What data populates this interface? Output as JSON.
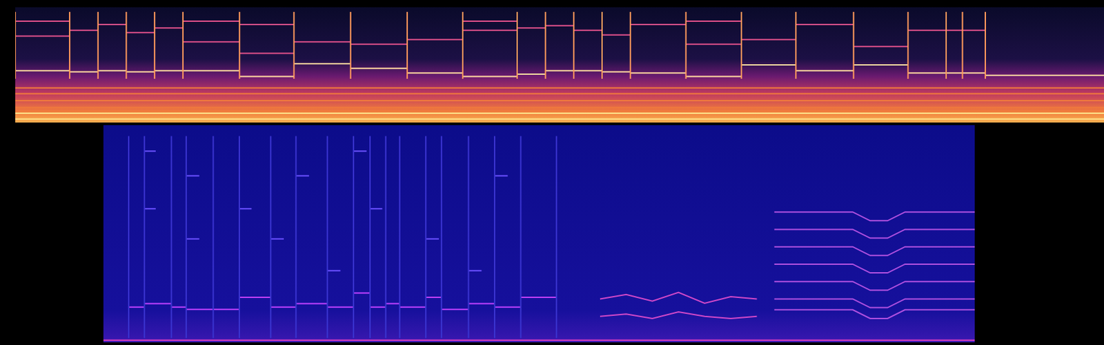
{
  "chart_data": [
    {
      "type": "spectrogram",
      "xlim": [
        0,
        100
      ],
      "ylim": [
        0,
        100
      ],
      "tick_labels": false,
      "grid": false,
      "series": [
        {
          "type": "line",
          "color": "#f07a3c",
          "x": [
            0,
            100,
            null,
            0,
            100,
            null,
            0,
            100,
            null,
            0,
            100
          ],
          "values": [
            13,
            13,
            null,
            19,
            19,
            null,
            25,
            25,
            null,
            30,
            30
          ]
        },
        {
          "type": "line",
          "color": "#ffe28a",
          "x": [
            0,
            100,
            null,
            0,
            100
          ],
          "values": [
            3,
            3,
            null,
            8,
            8
          ]
        },
        {
          "type": "line",
          "color": "#ff9a5c",
          "x": [
            0,
            0,
            null,
            5.0,
            5.0,
            null,
            7.6,
            7.6,
            null,
            10.2,
            10.2,
            null,
            12.8,
            12.8,
            null,
            15.4,
            15.4,
            null,
            20.6,
            20.6,
            null,
            25.6,
            25.6,
            null,
            30.8,
            30.8,
            null,
            36.0,
            36.0,
            null,
            41.1,
            41.1,
            null,
            46.1,
            46.1,
            null,
            48.7,
            48.7,
            null,
            51.3,
            51.3,
            null,
            53.9,
            53.9,
            null,
            56.5,
            56.5,
            null,
            61.6,
            61.6,
            null,
            66.7,
            66.7,
            null,
            71.7,
            71.7,
            null,
            77.0,
            77.0,
            null,
            82.0,
            82.0,
            null,
            85.5,
            85.5,
            null,
            87.0,
            87.0,
            null,
            89.1,
            89.1
          ],
          "values": [
            38,
            96,
            null,
            38,
            96,
            null,
            38,
            96,
            null,
            38,
            96,
            null,
            38,
            96,
            null,
            38,
            96,
            null,
            38,
            96,
            null,
            38,
            96,
            null,
            38,
            96,
            null,
            38,
            96,
            null,
            38,
            96,
            null,
            38,
            96,
            null,
            38,
            96,
            null,
            38,
            96,
            null,
            38,
            96,
            null,
            38,
            96,
            null,
            38,
            96,
            null,
            38,
            96,
            null,
            38,
            96,
            null,
            38,
            96,
            null,
            38,
            96,
            null,
            38,
            96,
            null,
            38,
            96,
            null,
            38,
            96
          ]
        },
        {
          "type": "line",
          "color": "#e0508a",
          "x": [
            0,
            5,
            null,
            0,
            5,
            null,
            5,
            7.6,
            null,
            7.6,
            10.2,
            null,
            10.2,
            12.8,
            null,
            12.8,
            15.4,
            null,
            15.4,
            20.6,
            null,
            15.4,
            20.6,
            null,
            20.6,
            25.6,
            null,
            20.6,
            25.6,
            null,
            25.6,
            30.8,
            null,
            30.8,
            36.0,
            null,
            36.0,
            41.1,
            null,
            41.1,
            46.1,
            null,
            41.1,
            46.1,
            null,
            46.1,
            48.7,
            null,
            48.7,
            51.3,
            null,
            51.3,
            53.9,
            null,
            53.9,
            56.5,
            null,
            56.5,
            61.6,
            null,
            61.6,
            66.7,
            null,
            61.6,
            66.7,
            null,
            66.7,
            71.7,
            null,
            71.7,
            77.0,
            null,
            77.0,
            82.0,
            null,
            82.0,
            89.1
          ],
          "values": [
            88,
            88,
            null,
            75,
            75,
            null,
            80,
            80,
            null,
            85,
            85,
            null,
            78,
            78,
            null,
            82,
            82,
            null,
            88,
            88,
            null,
            70,
            70,
            null,
            85,
            85,
            null,
            60,
            60,
            null,
            70,
            70,
            null,
            68,
            68,
            null,
            72,
            72,
            null,
            88,
            88,
            null,
            80,
            80,
            null,
            82,
            82,
            null,
            84,
            84,
            null,
            80,
            80,
            null,
            76,
            76,
            null,
            85,
            85,
            null,
            88,
            88,
            null,
            68,
            68,
            null,
            72,
            72,
            null,
            85,
            85,
            null,
            66,
            66,
            null,
            80,
            80
          ]
        },
        {
          "type": "line",
          "color": "#ffd9a0",
          "x": [
            0,
            5.0,
            null,
            5.0,
            7.6,
            null,
            7.6,
            10.2,
            null,
            10.2,
            12.8,
            null,
            12.8,
            15.4,
            null,
            15.4,
            20.6,
            null,
            20.6,
            25.6,
            null,
            25.6,
            30.8,
            null,
            30.8,
            36.0,
            null,
            36.0,
            41.1,
            null,
            41.1,
            46.1,
            null,
            46.1,
            48.7,
            null,
            48.7,
            51.3,
            null,
            51.3,
            53.9,
            null,
            53.9,
            56.5,
            null,
            56.5,
            61.6,
            null,
            61.6,
            66.7,
            null,
            66.7,
            71.7,
            null,
            71.7,
            77.0,
            null,
            77.0,
            82.0,
            null,
            82.0,
            89.1,
            null,
            89.1,
            100
          ],
          "values": [
            45,
            45,
            null,
            44,
            44,
            null,
            45,
            45,
            null,
            44,
            44,
            null,
            45,
            45,
            null,
            45,
            45,
            null,
            40,
            40,
            null,
            51,
            51,
            null,
            47,
            47,
            null,
            43,
            43,
            null,
            40,
            40,
            null,
            42,
            42,
            null,
            45,
            45,
            null,
            45,
            45,
            null,
            44,
            44,
            null,
            43,
            43,
            null,
            40,
            40,
            null,
            50,
            50,
            null,
            45,
            45,
            null,
            50,
            50,
            null,
            43,
            43,
            null,
            41,
            41
          ]
        }
      ]
    },
    {
      "type": "spectrogram",
      "xlim": [
        0,
        100
      ],
      "ylim": [
        0,
        100
      ],
      "tick_labels": false,
      "grid": false,
      "series": [
        {
          "type": "line",
          "color": "#3a34d0",
          "x": [
            2.9,
            2.9,
            null,
            4.7,
            4.7,
            null,
            7.8,
            7.8,
            null,
            9.5,
            9.5,
            null,
            12.6,
            12.6,
            null,
            15.6,
            15.6,
            null,
            19.2,
            19.2,
            null,
            22.1,
            22.1,
            null,
            25.7,
            25.7,
            null,
            28.7,
            28.7,
            null,
            30.6,
            30.6,
            null,
            32.4,
            32.4,
            null,
            34.0,
            34.0,
            null,
            37.0,
            37.0,
            null,
            38.8,
            38.8,
            null,
            41.9,
            41.9,
            null,
            44.9,
            44.9,
            null,
            47.9,
            47.9,
            null,
            52.0,
            52.0
          ],
          "values": [
            2,
            95,
            null,
            2,
            95,
            null,
            2,
            95,
            null,
            2,
            95,
            null,
            2,
            95,
            null,
            2,
            95,
            null,
            2,
            95,
            null,
            2,
            95,
            null,
            2,
            95,
            null,
            2,
            95,
            null,
            2,
            95,
            null,
            2,
            95,
            null,
            2,
            95,
            null,
            2,
            95,
            null,
            2,
            95,
            null,
            2,
            95,
            null,
            2,
            95,
            null,
            2,
            95,
            null,
            2,
            95
          ]
        },
        {
          "type": "line",
          "color": "#e040c0",
          "x": [
            0,
            100
          ],
          "values": [
            1,
            1
          ]
        },
        {
          "type": "line",
          "color": "#6a50ff",
          "x": [
            4.7,
            6,
            null,
            4.7,
            6,
            null,
            9.5,
            11,
            null,
            9.5,
            11,
            null,
            15.6,
            17,
            null,
            19.2,
            20.7,
            null,
            22.1,
            23.6,
            null,
            25.7,
            27.2,
            null,
            28.7,
            30.2,
            null,
            30.6,
            32,
            null,
            37.0,
            38.5,
            null,
            41.9,
            43.4,
            null,
            44.9,
            46.4
          ],
          "values": [
            88,
            88,
            null,
            61.5,
            61.5,
            null,
            76.7,
            76.7,
            null,
            47.6,
            47.6,
            null,
            61.5,
            61.5,
            null,
            47.6,
            47.6,
            null,
            76.7,
            76.7,
            null,
            33,
            33,
            null,
            88,
            88,
            null,
            61.5,
            61.5,
            null,
            47.6,
            47.6,
            null,
            33,
            33,
            null,
            76.7,
            76.7
          ]
        },
        {
          "type": "line",
          "color": "#c040ff",
          "x": [
            2.9,
            4.7,
            null,
            4.7,
            7.8,
            null,
            7.8,
            9.5,
            null,
            9.5,
            12.6,
            null,
            12.6,
            15.6,
            null,
            15.6,
            19.2,
            null,
            19.2,
            22.1,
            null,
            22.1,
            25.7,
            null,
            25.7,
            28.7,
            null,
            28.7,
            30.6,
            null,
            30.6,
            32.4,
            null,
            32.4,
            34.0,
            null,
            34.0,
            37.0,
            null,
            37.0,
            38.8,
            null,
            38.8,
            41.9,
            null,
            41.9,
            44.9,
            null,
            44.9,
            47.9,
            null,
            47.9,
            52.0
          ],
          "values": [
            16.2,
            16.2,
            null,
            17.8,
            17.8,
            null,
            16.2,
            16.2,
            null,
            15.2,
            15.2,
            null,
            15.2,
            15.2,
            null,
            20.7,
            20.7,
            null,
            16.2,
            16.2,
            null,
            17.8,
            17.8,
            null,
            16.2,
            16.2,
            null,
            22.7,
            22.7,
            null,
            16.2,
            16.2,
            null,
            17.8,
            17.8,
            null,
            16.2,
            16.2,
            null,
            20.7,
            20.7,
            null,
            15.2,
            15.2,
            null,
            17.8,
            17.8,
            null,
            16.2,
            16.2,
            null,
            20.7,
            20.7
          ]
        },
        {
          "type": "line",
          "color": "#d048c8",
          "x": [
            57,
            60,
            63,
            66,
            69,
            72,
            75,
            null,
            57,
            60,
            63,
            66,
            69,
            72,
            75
          ],
          "values": [
            20,
            22,
            19,
            23,
            18,
            21,
            20,
            null,
            12,
            13,
            11,
            14,
            12,
            11,
            12
          ]
        },
        {
          "type": "line",
          "color": "#b050e0",
          "x": [
            77,
            86,
            88,
            90,
            92,
            100,
            null,
            77,
            86,
            88,
            90,
            92,
            100,
            null,
            77,
            86,
            88,
            90,
            92,
            100,
            null,
            77,
            86,
            88,
            90,
            92,
            100,
            null,
            77,
            86,
            88,
            90,
            92,
            100,
            null,
            77,
            86,
            88,
            90,
            92,
            100,
            null,
            77,
            86,
            88,
            90,
            92,
            100
          ],
          "values": [
            60,
            60,
            56,
            56,
            60,
            60,
            null,
            52,
            52,
            48,
            48,
            52,
            52,
            null,
            44,
            44,
            40,
            40,
            44,
            44,
            null,
            36,
            36,
            32,
            32,
            36,
            36,
            null,
            28,
            28,
            24,
            24,
            28,
            28,
            null,
            20,
            20,
            16,
            16,
            20,
            20,
            null,
            15,
            15,
            11,
            11,
            15,
            15
          ]
        }
      ]
    }
  ]
}
